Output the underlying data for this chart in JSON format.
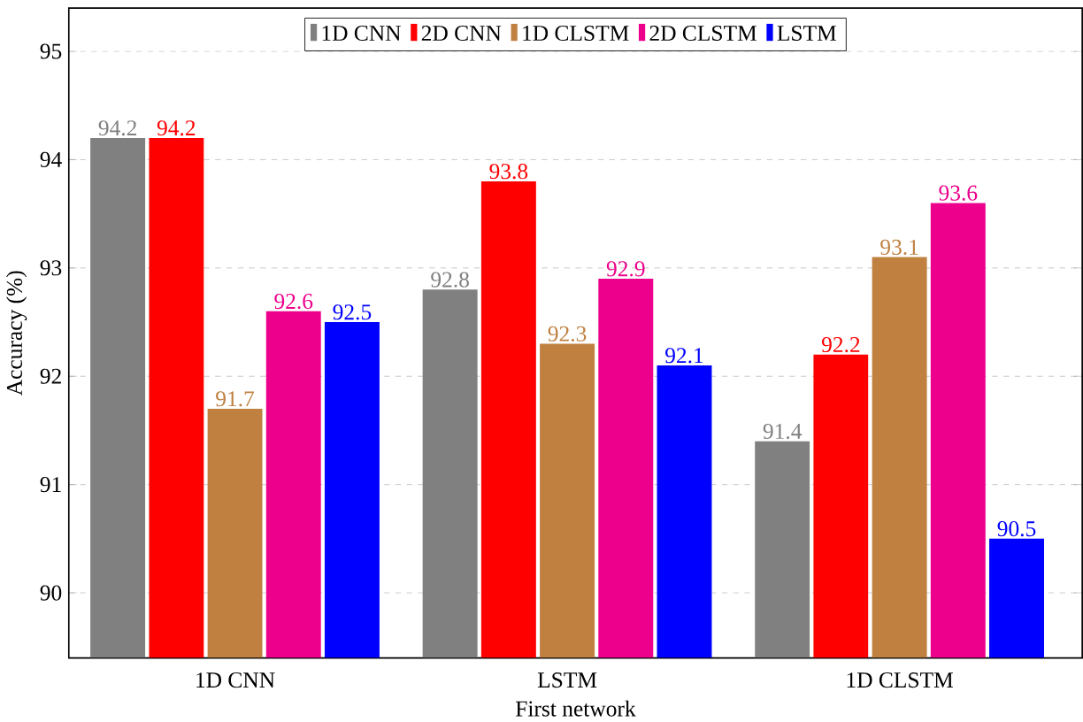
{
  "chart_data": {
    "type": "bar",
    "xlabel": "First network",
    "ylabel": "Accuracy (%)",
    "categories": [
      "1D CNN",
      "LSTM",
      "1D CLSTM"
    ],
    "series": [
      {
        "name": "1D CNN",
        "color": "#808080",
        "values": [
          94.2,
          92.8,
          91.4
        ]
      },
      {
        "name": "2D CNN",
        "color": "#ff0000",
        "values": [
          94.2,
          93.8,
          92.2
        ]
      },
      {
        "name": "1D CLSTM",
        "color": "#bf8040",
        "values": [
          91.7,
          92.3,
          93.1
        ]
      },
      {
        "name": "2D CLSTM",
        "color": "#ec008c",
        "values": [
          92.6,
          92.9,
          93.6
        ]
      },
      {
        "name": "LSTM",
        "color": "#0000ff",
        "values": [
          92.5,
          92.1,
          90.5
        ]
      }
    ],
    "ylim": [
      89.4,
      95.4
    ],
    "yticks": [
      90,
      91,
      92,
      93,
      94,
      95
    ],
    "grid": "y",
    "legend": "top",
    "data_labels": true
  }
}
